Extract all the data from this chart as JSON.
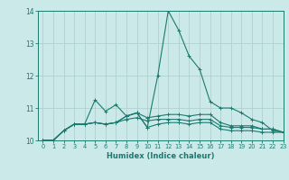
{
  "xlabel": "Humidex (Indice chaleur)",
  "xlim": [
    -0.5,
    23
  ],
  "ylim": [
    10,
    14
  ],
  "yticks": [
    10,
    11,
    12,
    13,
    14
  ],
  "xticks": [
    0,
    1,
    2,
    3,
    4,
    5,
    6,
    7,
    8,
    9,
    10,
    11,
    12,
    13,
    14,
    15,
    16,
    17,
    18,
    19,
    20,
    21,
    22,
    23
  ],
  "bg_color": "#cce9e9",
  "line_color": "#1a7a6e",
  "grid_color": "#b0d0d0",
  "series": [
    [
      10.0,
      10.0,
      10.3,
      10.5,
      10.5,
      11.25,
      10.9,
      11.1,
      10.75,
      10.85,
      10.4,
      12.0,
      14.0,
      13.4,
      12.6,
      12.2,
      11.2,
      11.0,
      11.0,
      10.85,
      10.65,
      10.55,
      10.3,
      10.25
    ],
    [
      10.0,
      10.0,
      10.3,
      10.5,
      10.5,
      10.55,
      10.5,
      10.55,
      10.75,
      10.85,
      10.4,
      10.5,
      10.55,
      10.55,
      10.5,
      10.55,
      10.55,
      10.35,
      10.3,
      10.3,
      10.3,
      10.25,
      10.25,
      10.25
    ],
    [
      10.0,
      10.0,
      10.3,
      10.5,
      10.5,
      10.55,
      10.5,
      10.55,
      10.65,
      10.7,
      10.6,
      10.65,
      10.65,
      10.65,
      10.6,
      10.65,
      10.65,
      10.45,
      10.4,
      10.4,
      10.4,
      10.35,
      10.35,
      10.25
    ],
    [
      10.0,
      10.0,
      10.3,
      10.5,
      10.5,
      10.55,
      10.5,
      10.55,
      10.75,
      10.85,
      10.7,
      10.75,
      10.8,
      10.8,
      10.75,
      10.8,
      10.8,
      10.55,
      10.45,
      10.45,
      10.45,
      10.35,
      10.35,
      10.25
    ]
  ]
}
